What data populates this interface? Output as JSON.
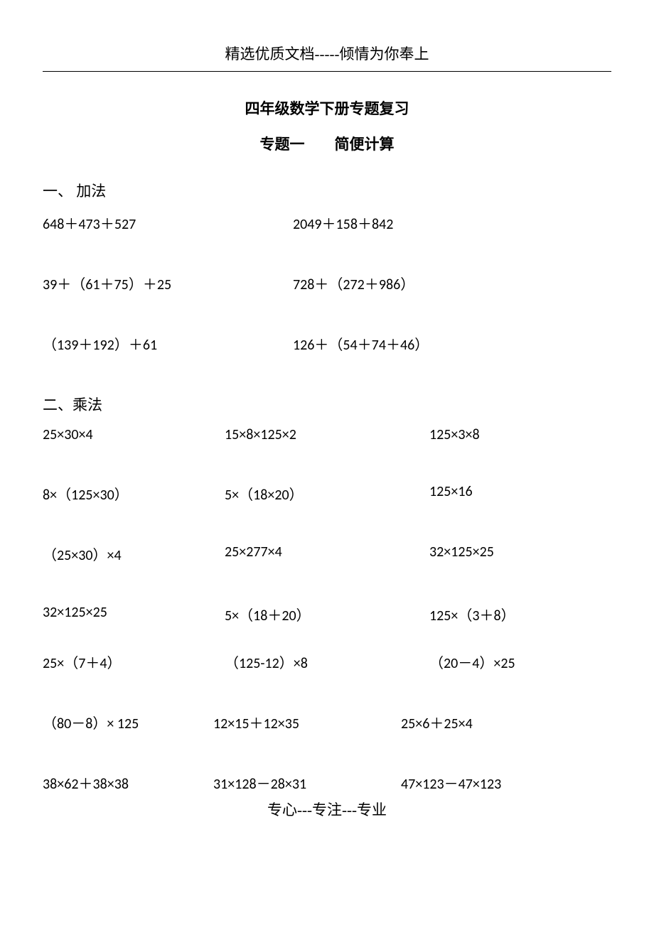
{
  "header": "精选优质文档-----倾情为你奉上",
  "title_main": "四年级数学下册专题复习",
  "title_sub": "专题一　　简便计算",
  "section1": {
    "heading": "一、 加法",
    "rows": [
      {
        "a": "648＋473＋527",
        "b": "2049＋158＋842"
      },
      {
        "a": "39＋（61＋75）＋25",
        "b": "728＋（272＋986）"
      },
      {
        "a": "（139＋192）＋61",
        "b": "126＋（54＋74＋46）"
      }
    ]
  },
  "section2": {
    "heading": "二、乘法",
    "rows": [
      {
        "a": "25×30×4",
        "b": "15×8×125×2",
        "c": "125×3×8"
      },
      {
        "a": "8×（125×30）",
        "b": "5×（18×20）",
        "c": "125×16"
      },
      {
        "a": "（25×30）×4",
        "b": "25×277×4",
        "c": "32×125×25"
      },
      {
        "a": "32×125×25",
        "b": "5×（18＋20）",
        "c": "125×（3＋8）"
      },
      {
        "a": "25×（7＋4）",
        "b": "（125-12）×8",
        "c": "（20－4）×25"
      },
      {
        "a": "（80－8）× 125",
        "b": "12×15＋12×35",
        "c": "25×6＋25×4"
      },
      {
        "a": "38×62＋38×38",
        "b": "31×128－28×31",
        "c": "47×123－47×123"
      }
    ]
  },
  "footer": "专心---专注---专业"
}
